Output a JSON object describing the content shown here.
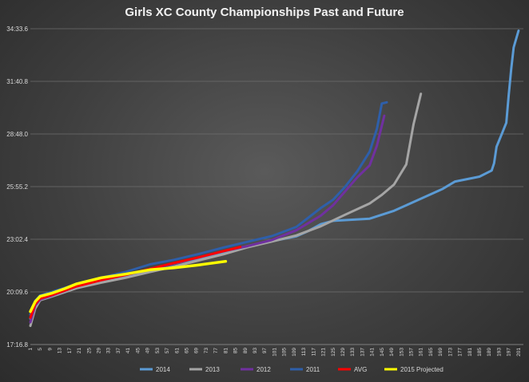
{
  "chart_data": {
    "type": "line",
    "title": "Girls XC County Championships Past and Future",
    "xlabel": "",
    "ylabel": "",
    "y_unit": "seconds (mm:ss.s)",
    "xlim": [
      1,
      203
    ],
    "ylim": [
      1036.8,
      2073.6
    ],
    "y_tick_labels": [
      "17:16.8",
      "20:09.6",
      "23:02.4",
      "25:55.2",
      "28:48.0",
      "31:40.8",
      "34:33.6"
    ],
    "y_tick_values": [
      1036.8,
      1209.6,
      1382.4,
      1555.2,
      1728.0,
      1900.8,
      2073.6
    ],
    "x_tick_step": 4,
    "x_tick_first": 1,
    "x_tick_last": 201,
    "grid": true,
    "legend_position": "bottom",
    "series": [
      {
        "name": "2014",
        "color": "#5b9bd5",
        "x": [
          1,
          3,
          5,
          10,
          20,
          30,
          40,
          50,
          60,
          70,
          80,
          90,
          100,
          110,
          115,
          120,
          125,
          140,
          150,
          160,
          170,
          175,
          185,
          190,
          191,
          192,
          194,
          196,
          197,
          198,
          199,
          201
        ],
        "y": [
          1122,
          1177,
          1193,
          1205,
          1225,
          1245,
          1263,
          1283,
          1303,
          1320,
          1338,
          1360,
          1376,
          1392,
          1410,
          1432,
          1443,
          1450,
          1476,
          1512,
          1548,
          1572,
          1588,
          1608,
          1632,
          1686,
          1725,
          1765,
          1858,
          1940,
          2012,
          2067
        ]
      },
      {
        "name": "2013",
        "color": "#a5a5a5",
        "x": [
          1,
          3,
          5,
          10,
          20,
          30,
          40,
          50,
          60,
          70,
          80,
          90,
          100,
          110,
          120,
          130,
          140,
          145,
          150,
          155,
          158,
          161
        ],
        "y": [
          1098,
          1155,
          1182,
          1195,
          1222,
          1240,
          1256,
          1275,
          1293,
          1313,
          1333,
          1356,
          1375,
          1395,
          1425,
          1463,
          1500,
          1528,
          1562,
          1628,
          1760,
          1860
        ]
      },
      {
        "name": "2012",
        "color": "#7030a0",
        "x": [
          1,
          3,
          5,
          10,
          20,
          30,
          40,
          50,
          60,
          70,
          80,
          90,
          100,
          110,
          120,
          125,
          130,
          135,
          140,
          143,
          146
        ],
        "y": [
          1110,
          1165,
          1185,
          1198,
          1228,
          1248,
          1266,
          1283,
          1303,
          1323,
          1343,
          1360,
          1380,
          1412,
          1460,
          1494,
          1540,
          1586,
          1625,
          1690,
          1788
        ]
      },
      {
        "name": "2011",
        "color": "#2e5faa",
        "x": [
          1,
          3,
          5,
          10,
          20,
          30,
          40,
          50,
          60,
          70,
          80,
          90,
          100,
          110,
          120,
          125,
          130,
          135,
          140,
          143,
          145,
          147
        ],
        "y": [
          1135,
          1180,
          1198,
          1210,
          1235,
          1256,
          1275,
          1300,
          1315,
          1334,
          1355,
          1374,
          1393,
          1423,
          1485,
          1512,
          1555,
          1606,
          1670,
          1745,
          1828,
          1832
        ]
      },
      {
        "name": "AVG",
        "color": "#ff0000",
        "x": [
          1,
          3,
          5,
          10,
          20,
          30,
          40,
          50,
          60,
          70,
          80,
          87
        ],
        "y": [
          1125,
          1170,
          1188,
          1200,
          1228,
          1248,
          1265,
          1285,
          1305,
          1323,
          1343,
          1357
        ]
      },
      {
        "name": "2015 Projected",
        "color": "#ffff00",
        "x": [
          1,
          3,
          5,
          10,
          15,
          20,
          30,
          40,
          50,
          60,
          70,
          81
        ],
        "y": [
          1145,
          1178,
          1195,
          1206,
          1220,
          1236,
          1256,
          1268,
          1282,
          1289,
          1298,
          1310
        ]
      }
    ]
  }
}
